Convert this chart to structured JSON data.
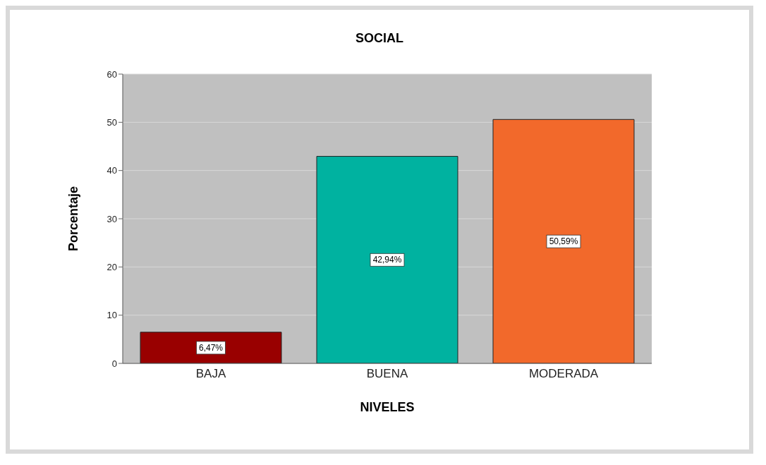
{
  "chart_data": {
    "type": "bar",
    "title": "SOCIAL",
    "xlabel": "NIVELES",
    "ylabel": "Porcentaje",
    "categories": [
      "BAJA",
      "BUENA",
      "MODERADA"
    ],
    "values": [
      6.47,
      42.94,
      50.59
    ],
    "colors": [
      "#990000",
      "#00b2a0",
      "#f2692b"
    ],
    "value_labels": [
      "6,47%",
      "42,94%",
      "50,59%"
    ],
    "ylim": [
      0,
      60
    ],
    "yticks": [
      0,
      10,
      20,
      30,
      40,
      50,
      60
    ],
    "grid": "y"
  }
}
